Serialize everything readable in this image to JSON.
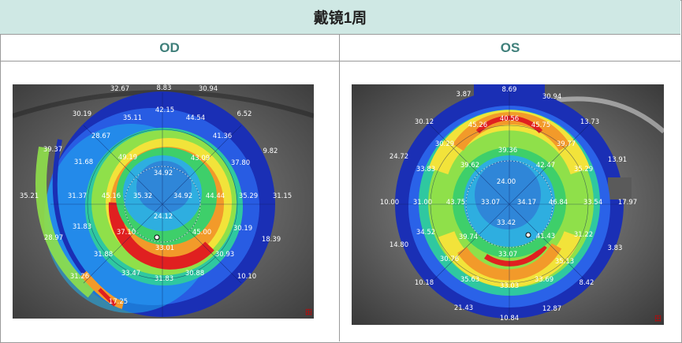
{
  "title": "戴镜1周",
  "columns": [
    {
      "label": "OD"
    },
    {
      "label": "OS"
    }
  ],
  "od_map": {
    "values": [
      "32.67",
      "8.83",
      "30.94",
      "30.19",
      "42.15",
      "44.54",
      "6.52",
      "35.11",
      "41.36",
      "28.67",
      "31.68",
      "49.19",
      "43.09",
      "37.80",
      "9.82",
      "39.37",
      "34.92",
      "35.21",
      "31.37",
      "45.16",
      "35.32",
      "34.92",
      "44.44",
      "35.29",
      "31.15",
      "24.12",
      "31.83",
      "37.10",
      "45.00",
      "30.19",
      "18.39",
      "28.97",
      "33.01",
      "31.88",
      "30.93",
      "31.26",
      "33.47",
      "31.83",
      "30.88",
      "10.10",
      "17.25"
    ],
    "marks": [
      "田"
    ]
  },
  "os_map": {
    "values": [
      "3.87",
      "8.69",
      "30.94",
      "40.56",
      "30.12",
      "45.26",
      "45.75",
      "13.73",
      "30.29",
      "39.36",
      "39.77",
      "13.91",
      "24.72",
      "33.83",
      "39.62",
      "42.47",
      "35.29",
      "24.00",
      "10.00",
      "31.00",
      "43.75",
      "33.07",
      "34.17",
      "46.84",
      "33.54",
      "17.97",
      "33.42",
      "34.52",
      "39.74",
      "41.43",
      "14.80",
      "31.22",
      "33.07",
      "35.13",
      "3.83",
      "30.76",
      "35.63",
      "10.18",
      "33.69",
      "8.42",
      "21.43",
      "33.03",
      "12.87",
      "10.84"
    ],
    "marks": [
      "田"
    ]
  }
}
